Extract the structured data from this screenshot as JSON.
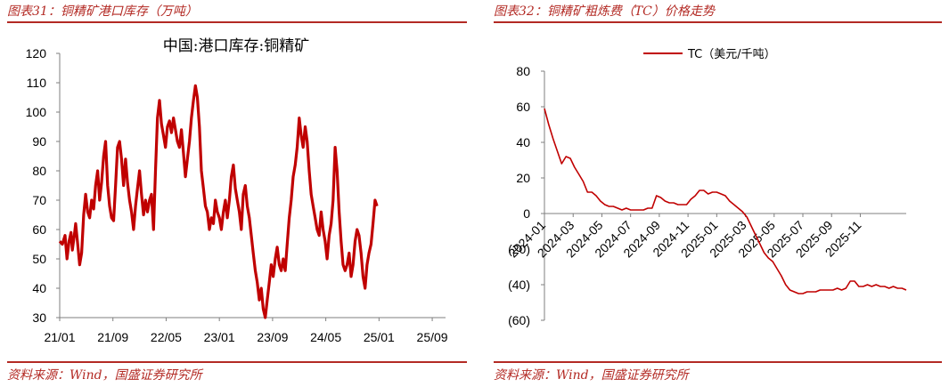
{
  "left": {
    "figure_title": "图表31：铜精矿港口库存（万吨）",
    "source": "资料来源：Wind，国盛证券研究所"
  },
  "right": {
    "figure_title": "图表32：铜精矿粗炼费（TC）价格走势",
    "source": "资料来源：Wind，国盛证券研究所"
  },
  "colors": {
    "accent": "#b32a24",
    "line": "#c00000",
    "axis": "#7f7f7f"
  },
  "chart_data": [
    {
      "type": "line",
      "title": "中国:港口库存:铜精矿",
      "xlabel": "",
      "ylabel": "",
      "ylim": [
        30,
        120
      ],
      "yticks": [
        30,
        40,
        50,
        60,
        70,
        80,
        90,
        100,
        110,
        120
      ],
      "xticks": [
        "21/01",
        "21/09",
        "22/05",
        "23/01",
        "23/09",
        "24/05",
        "25/01",
        "25/09"
      ],
      "xlim_months": [
        "2021-01",
        "2025-11"
      ],
      "series": [
        {
          "name": "",
          "x_unit": "months since 2021-01",
          "points": [
            [
              0.0,
              56
            ],
            [
              0.4,
              55
            ],
            [
              0.8,
              58
            ],
            [
              1.1,
              50
            ],
            [
              1.4,
              56
            ],
            [
              1.7,
              59
            ],
            [
              1.9,
              53
            ],
            [
              2.2,
              58
            ],
            [
              2.4,
              62
            ],
            [
              2.7,
              55
            ],
            [
              3.0,
              48
            ],
            [
              3.3,
              52
            ],
            [
              3.6,
              65
            ],
            [
              3.9,
              72
            ],
            [
              4.2,
              66
            ],
            [
              4.5,
              64
            ],
            [
              4.8,
              70
            ],
            [
              5.1,
              67
            ],
            [
              5.4,
              75
            ],
            [
              5.7,
              80
            ],
            [
              6.0,
              70
            ],
            [
              6.3,
              76
            ],
            [
              6.6,
              85
            ],
            [
              6.9,
              90
            ],
            [
              7.2,
              75
            ],
            [
              7.5,
              68
            ],
            [
              7.8,
              64
            ],
            [
              8.1,
              63
            ],
            [
              8.4,
              75
            ],
            [
              8.7,
              88
            ],
            [
              9.0,
              90
            ],
            [
              9.3,
              84
            ],
            [
              9.6,
              75
            ],
            [
              9.9,
              84
            ],
            [
              10.2,
              76
            ],
            [
              10.5,
              70
            ],
            [
              10.8,
              66
            ],
            [
              11.1,
              60
            ],
            [
              11.4,
              68
            ],
            [
              11.7,
              74
            ],
            [
              12.0,
              80
            ],
            [
              12.3,
              72
            ],
            [
              12.6,
              65
            ],
            [
              12.9,
              70
            ],
            [
              13.2,
              66
            ],
            [
              13.5,
              70
            ],
            [
              13.8,
              72
            ],
            [
              14.1,
              60
            ],
            [
              14.4,
              80
            ],
            [
              14.7,
              98
            ],
            [
              15.0,
              104
            ],
            [
              15.3,
              96
            ],
            [
              15.6,
              92
            ],
            [
              15.9,
              88
            ],
            [
              16.2,
              95
            ],
            [
              16.5,
              97
            ],
            [
              16.8,
              93
            ],
            [
              17.1,
              98
            ],
            [
              17.4,
              94
            ],
            [
              17.7,
              90
            ],
            [
              18.0,
              88
            ],
            [
              18.3,
              94
            ],
            [
              18.6,
              86
            ],
            [
              18.9,
              78
            ],
            [
              19.2,
              84
            ],
            [
              19.5,
              90
            ],
            [
              19.8,
              98
            ],
            [
              20.1,
              104
            ],
            [
              20.4,
              109
            ],
            [
              20.7,
              105
            ],
            [
              21.0,
              95
            ],
            [
              21.3,
              80
            ],
            [
              21.6,
              74
            ],
            [
              21.9,
              68
            ],
            [
              22.2,
              66
            ],
            [
              22.5,
              60
            ],
            [
              22.8,
              64
            ],
            [
              23.1,
              62
            ],
            [
              23.4,
              70
            ],
            [
              23.7,
              66
            ],
            [
              24.0,
              64
            ],
            [
              24.3,
              60
            ],
            [
              24.6,
              66
            ],
            [
              24.9,
              70
            ],
            [
              25.2,
              64
            ],
            [
              25.5,
              70
            ],
            [
              25.8,
              78
            ],
            [
              26.1,
              82
            ],
            [
              26.4,
              74
            ],
            [
              26.7,
              70
            ],
            [
              27.0,
              66
            ],
            [
              27.3,
              60
            ],
            [
              27.6,
              72
            ],
            [
              27.9,
              75
            ],
            [
              28.2,
              68
            ],
            [
              28.5,
              64
            ],
            [
              28.8,
              58
            ],
            [
              29.1,
              52
            ],
            [
              29.4,
              46
            ],
            [
              29.7,
              42
            ],
            [
              30.0,
              36
            ],
            [
              30.3,
              40
            ],
            [
              30.6,
              33
            ],
            [
              30.9,
              30
            ],
            [
              31.2,
              36
            ],
            [
              31.5,
              42
            ],
            [
              31.8,
              48
            ],
            [
              32.1,
              44
            ],
            [
              32.4,
              50
            ],
            [
              32.7,
              54
            ],
            [
              33.0,
              48
            ],
            [
              33.3,
              46
            ],
            [
              33.6,
              50
            ],
            [
              33.9,
              46
            ],
            [
              34.2,
              55
            ],
            [
              34.5,
              64
            ],
            [
              34.8,
              70
            ],
            [
              35.1,
              78
            ],
            [
              35.4,
              82
            ],
            [
              35.7,
              88
            ],
            [
              36.0,
              98
            ],
            [
              36.3,
              92
            ],
            [
              36.6,
              88
            ],
            [
              36.9,
              95
            ],
            [
              37.2,
              90
            ],
            [
              37.5,
              80
            ],
            [
              37.8,
              72
            ],
            [
              38.1,
              68
            ],
            [
              38.4,
              64
            ],
            [
              38.7,
              60
            ],
            [
              39.0,
              58
            ],
            [
              39.3,
              66
            ],
            [
              39.6,
              60
            ],
            [
              39.9,
              56
            ],
            [
              40.2,
              50
            ],
            [
              40.5,
              58
            ],
            [
              40.8,
              62
            ],
            [
              41.1,
              70
            ],
            [
              41.4,
              88
            ],
            [
              41.7,
              80
            ],
            [
              42.0,
              66
            ],
            [
              42.3,
              56
            ],
            [
              42.6,
              48
            ],
            [
              42.9,
              46
            ],
            [
              43.2,
              48
            ],
            [
              43.5,
              52
            ],
            [
              43.8,
              44
            ],
            [
              44.1,
              48
            ],
            [
              44.4,
              56
            ],
            [
              44.7,
              60
            ],
            [
              45.0,
              58
            ],
            [
              45.3,
              52
            ],
            [
              45.6,
              44
            ],
            [
              45.9,
              40
            ],
            [
              46.2,
              48
            ],
            [
              46.5,
              52
            ],
            [
              46.8,
              55
            ],
            [
              47.1,
              62
            ],
            [
              47.4,
              70
            ],
            [
              47.7,
              68
            ]
          ]
        }
      ]
    },
    {
      "type": "line",
      "title": "",
      "xlabel": "",
      "ylabel": "",
      "ylim": [
        -60,
        80
      ],
      "yticks": [
        80,
        60,
        40,
        20,
        0,
        "(20)",
        "(40)",
        "(60)"
      ],
      "xticks": [
        "2024-01",
        "2024-03",
        "2024-05",
        "2024-07",
        "2024-09",
        "2024-11",
        "2025-01",
        "2025-03",
        "2025-05",
        "2025-07",
        "2025-09",
        "2025-11"
      ],
      "legend_position": "top-center",
      "series": [
        {
          "name": "TC（美元/千吨）",
          "x_unit": "months since 2024-01",
          "points": [
            [
              0.0,
              59
            ],
            [
              0.3,
              50
            ],
            [
              0.6,
              42
            ],
            [
              0.9,
              35
            ],
            [
              1.2,
              28
            ],
            [
              1.5,
              32
            ],
            [
              1.8,
              31
            ],
            [
              2.1,
              26
            ],
            [
              2.4,
              22
            ],
            [
              2.7,
              18
            ],
            [
              3.0,
              12
            ],
            [
              3.3,
              12
            ],
            [
              3.6,
              10
            ],
            [
              3.9,
              7
            ],
            [
              4.2,
              5
            ],
            [
              4.5,
              4
            ],
            [
              4.8,
              4
            ],
            [
              5.1,
              3
            ],
            [
              5.4,
              2
            ],
            [
              5.7,
              3
            ],
            [
              6.0,
              2
            ],
            [
              6.3,
              2
            ],
            [
              6.6,
              2
            ],
            [
              6.9,
              2
            ],
            [
              7.2,
              3
            ],
            [
              7.5,
              3
            ],
            [
              7.8,
              10
            ],
            [
              8.1,
              9
            ],
            [
              8.4,
              7
            ],
            [
              8.7,
              6
            ],
            [
              9.0,
              6
            ],
            [
              9.3,
              5
            ],
            [
              9.6,
              5
            ],
            [
              9.9,
              5
            ],
            [
              10.2,
              8
            ],
            [
              10.5,
              10
            ],
            [
              10.8,
              13
            ],
            [
              11.1,
              13
            ],
            [
              11.4,
              11
            ],
            [
              11.7,
              12
            ],
            [
              12.0,
              12
            ],
            [
              12.3,
              11
            ],
            [
              12.6,
              10
            ],
            [
              12.9,
              7
            ],
            [
              13.2,
              5
            ],
            [
              13.5,
              3
            ],
            [
              13.8,
              1
            ],
            [
              14.1,
              -2
            ],
            [
              14.4,
              -7
            ],
            [
              14.7,
              -12
            ],
            [
              15.0,
              -17
            ],
            [
              15.3,
              -22
            ],
            [
              15.6,
              -25
            ],
            [
              15.9,
              -27
            ],
            [
              16.2,
              -31
            ],
            [
              16.5,
              -35
            ],
            [
              16.8,
              -40
            ],
            [
              17.1,
              -43
            ],
            [
              17.4,
              -44
            ],
            [
              17.7,
              -45
            ],
            [
              18.0,
              -45
            ],
            [
              18.3,
              -44
            ],
            [
              18.6,
              -44
            ],
            [
              18.9,
              -44
            ],
            [
              19.2,
              -43
            ],
            [
              19.5,
              -43
            ],
            [
              19.8,
              -43
            ],
            [
              20.1,
              -43
            ],
            [
              20.4,
              -42
            ],
            [
              20.7,
              -43
            ],
            [
              21.0,
              -42
            ],
            [
              21.3,
              -38
            ],
            [
              21.6,
              -38
            ],
            [
              21.9,
              -41
            ],
            [
              22.2,
              -41
            ],
            [
              22.5,
              -40
            ],
            [
              22.8,
              -41
            ],
            [
              23.1,
              -40
            ],
            [
              23.4,
              -41
            ],
            [
              23.7,
              -41
            ],
            [
              24.0,
              -42
            ],
            [
              24.3,
              -41
            ],
            [
              24.6,
              -42
            ],
            [
              24.9,
              -42
            ],
            [
              25.2,
              -43
            ]
          ]
        }
      ]
    }
  ]
}
